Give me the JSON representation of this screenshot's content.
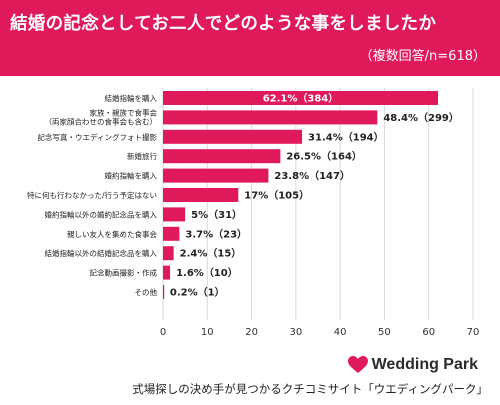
{
  "header": {
    "title": "結婚の記念としてお二人でどのような事をしましたか",
    "note": "（複数回答/n=618）"
  },
  "chart_data": {
    "type": "bar",
    "orientation": "horizontal",
    "categories": [
      [
        "結婚指輪を購入"
      ],
      [
        "家族・親族で食事会",
        "（両家顔合わせの食事会も含む）"
      ],
      [
        "記念写真・ウエディングフォト撮影"
      ],
      [
        "新婚旅行"
      ],
      [
        "婚約指輪を購入"
      ],
      [
        "特に何も行わなかった/行う予定はない"
      ],
      [
        "婚約指輪以外の婚約記念品を購入"
      ],
      [
        "親しい友人を集めた食事会"
      ],
      [
        "結婚指輪以外の結婚記念品を購入"
      ],
      [
        "記念動画撮影・作成"
      ],
      [
        "その他"
      ]
    ],
    "values": [
      62.1,
      48.4,
      31.4,
      26.5,
      23.8,
      17,
      5,
      3.7,
      2.4,
      1.6,
      0.2
    ],
    "labels": [
      "62.1%（384）",
      "48.4%（299）",
      "31.4%（194）",
      "26.5%（164）",
      "23.8%（147）",
      "17%（105）",
      "5%（31）",
      "3.7%（23）",
      "2.4%（15）",
      "1.6%（10）",
      "0.2%（1）"
    ],
    "xlim": [
      0,
      70
    ],
    "xticks": [
      "0",
      "10",
      "20",
      "30",
      "40",
      "50",
      "60",
      "70"
    ],
    "grid": true,
    "colors": {
      "bar": "#e0195a",
      "grid": "#d9d9d9"
    }
  },
  "brand": {
    "name": "Wedding Park",
    "icon": "heart-icon",
    "color": "#e0195a"
  },
  "footer": {
    "text": "式場探しの決め手が見つかるクチコミサイト「ウエディングパーク」"
  }
}
